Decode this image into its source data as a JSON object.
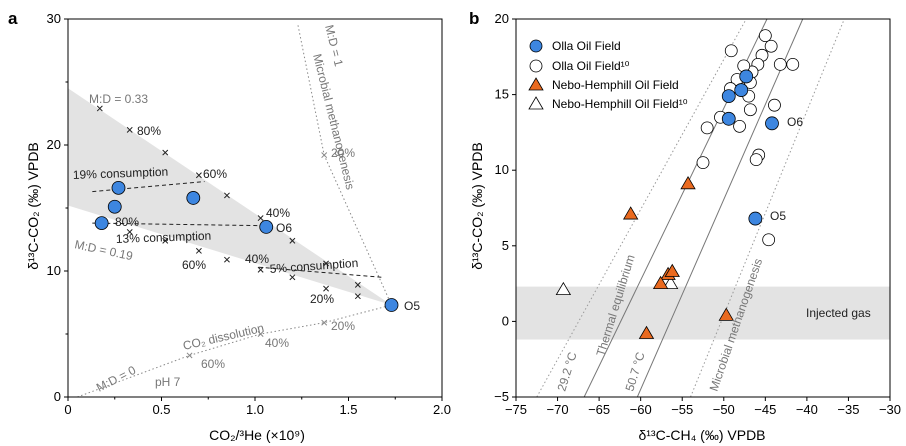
{
  "colors": {
    "olla_fill": "#3d86e0",
    "nebo_fill": "#ea6a1f",
    "band_fill": "#e3e3e3",
    "ann_gray": "#777777",
    "dark": "#222222"
  },
  "chart_data": [
    {
      "panel_label": "a",
      "type": "scatter",
      "xlabel": "CO₂/³He (×10⁹)",
      "ylabel": "δ¹³C-CO₂ (‰) VPDB",
      "xlim": [
        0,
        2.0
      ],
      "ylim": [
        0,
        30
      ],
      "xticks": [
        "0",
        "0.5",
        "1.0",
        "1.5",
        "2.0"
      ],
      "yticks": [
        "0",
        "10",
        "20",
        "30"
      ],
      "shaded_region": [
        [
          0.0,
          24.5
        ],
        [
          1.73,
          7.3
        ],
        [
          0.0,
          15.2
        ]
      ],
      "mixing_lines": [
        {
          "label": "M:D = 0.33",
          "points": [
            [
              0.17,
              22.9
            ],
            [
              0.33,
              21.2
            ],
            [
              0.52,
              19.4
            ],
            [
              0.7,
              17.6
            ],
            [
              0.85,
              16.0
            ],
            [
              1.03,
              14.2
            ],
            [
              1.2,
              12.4
            ],
            [
              1.38,
              10.6
            ],
            [
              1.55,
              8.9
            ],
            [
              1.73,
              7.3
            ]
          ],
          "pct_labels": [
            "80%",
            "60%",
            "40%"
          ]
        },
        {
          "label": "M:D = 0.19",
          "points": [
            [
              0.17,
              14.0
            ],
            [
              0.33,
              13.1
            ],
            [
              0.52,
              12.4
            ],
            [
              0.7,
              11.6
            ],
            [
              0.85,
              10.9
            ],
            [
              1.03,
              10.1
            ],
            [
              1.2,
              9.5
            ],
            [
              1.38,
              8.6
            ],
            [
              1.55,
              8.0
            ],
            [
              1.73,
              7.3
            ]
          ],
          "pct_labels": [
            "80%",
            "60%",
            "40%",
            "20%"
          ]
        },
        {
          "label": "M:D = 1",
          "sublabel": "Microbial methanogenesis",
          "points": [
            [
              1.23,
              29.5
            ],
            [
              1.37,
              19.2
            ],
            [
              1.73,
              7.3
            ]
          ],
          "pct_labels": [
            "20%"
          ]
        },
        {
          "label": "M:D = 0",
          "sublabel": "CO₂ dissolution",
          "extra": "pH 7",
          "points": [
            [
              0.05,
              0.0
            ],
            [
              0.65,
              3.3
            ],
            [
              1.03,
              5.0
            ],
            [
              1.37,
              5.9
            ],
            [
              1.73,
              7.3
            ]
          ],
          "pct_labels": [
            "60%",
            "40%",
            "20%"
          ]
        }
      ],
      "consumption_lines": [
        {
          "label": "19% consumption",
          "from": [
            0.13,
            16.3
          ],
          "to": [
            0.73,
            17.1
          ]
        },
        {
          "label": "13% consumption",
          "from": [
            0.13,
            13.8
          ],
          "to": [
            1.03,
            13.6
          ]
        },
        {
          "label": "5% consumption",
          "from": [
            1.02,
            10.3
          ],
          "to": [
            1.68,
            9.5
          ]
        }
      ],
      "series": [
        {
          "name": "Olla Oil Field",
          "marker": "filled-circle",
          "points": [
            [
              0.18,
              13.8
            ],
            [
              0.25,
              15.1
            ],
            [
              0.27,
              16.6
            ],
            [
              0.67,
              15.8
            ],
            [
              1.06,
              13.5
            ],
            [
              1.73,
              7.3
            ]
          ]
        }
      ],
      "point_labels": [
        {
          "text": "O6",
          "at": [
            1.06,
            13.5
          ]
        },
        {
          "text": "O5",
          "at": [
            1.73,
            7.3
          ]
        }
      ]
    },
    {
      "panel_label": "b",
      "type": "scatter",
      "xlabel": "δ¹³C-CH₄ (‰) VPDB",
      "ylabel": "δ¹³C-CO₂ (‰) VPDB",
      "xlim": [
        -75,
        -30
      ],
      "ylim": [
        -5,
        20
      ],
      "xticks": [
        "−75",
        "−70",
        "−65",
        "−60",
        "−55",
        "−50",
        "−45",
        "−40",
        "−35",
        "−30"
      ],
      "yticks": [
        "−5",
        "0",
        "5",
        "10",
        "15",
        "20"
      ],
      "injected_gas": {
        "label": "Injected gas",
        "y_range": [
          -1.2,
          2.3
        ]
      },
      "reference_lines": [
        {
          "label": "29.2 °C",
          "style": "dotted",
          "from": [
            -72.5,
            -5.0
          ],
          "to": [
            -47.3,
            20.0
          ]
        },
        {
          "label": "Thermal equilibrium",
          "style": "solid",
          "from": [
            -66.8,
            -5.0
          ],
          "to": [
            -44.8,
            20.0
          ]
        },
        {
          "label": "50.7 °C",
          "style": "solid",
          "from": [
            -60.4,
            -5.0
          ],
          "to": [
            -40.5,
            20.0
          ]
        },
        {
          "label": "Microbial methanogenesis",
          "style": "dotted",
          "from": [
            -54.0,
            -5.0
          ],
          "to": [
            -35.5,
            20.0
          ]
        }
      ],
      "series": [
        {
          "name": "Olla Oil Field",
          "marker": "filled-circle",
          "points": [
            [
              -49.4,
              14.9
            ],
            [
              -47.9,
              15.3
            ],
            [
              -47.3,
              16.2
            ],
            [
              -49.4,
              13.4
            ],
            [
              -44.2,
              13.1
            ],
            [
              -46.2,
              6.8
            ]
          ]
        },
        {
          "name": "Olla Oil Field¹⁰",
          "marker": "open-circle",
          "points": [
            [
              -49.1,
              17.9
            ],
            [
              -44.3,
              18.2
            ],
            [
              -45.0,
              18.9
            ],
            [
              -45.4,
              17.6
            ],
            [
              -45.9,
              17.0
            ],
            [
              -46.6,
              16.5
            ],
            [
              -47.6,
              16.9
            ],
            [
              -48.4,
              16.0
            ],
            [
              -49.2,
              15.4
            ],
            [
              -41.7,
              17.0
            ],
            [
              -43.2,
              17.0
            ],
            [
              -46.8,
              15.8
            ],
            [
              -47.0,
              14.9
            ],
            [
              -46.8,
              14.0
            ],
            [
              -48.1,
              12.9
            ],
            [
              -50.4,
              13.5
            ],
            [
              -52.0,
              12.8
            ],
            [
              -52.5,
              10.5
            ],
            [
              -45.8,
              11.0
            ],
            [
              -46.1,
              10.7
            ],
            [
              -43.9,
              14.3
            ],
            [
              -44.6,
              5.4
            ]
          ]
        },
        {
          "name": "Nebo-Hemphill Oil Field",
          "marker": "filled-triangle",
          "points": [
            [
              -61.2,
              7.1
            ],
            [
              -54.3,
              9.1
            ],
            [
              -56.7,
              3.1
            ],
            [
              -56.2,
              3.3
            ],
            [
              -57.6,
              2.5
            ],
            [
              -59.3,
              -0.8
            ],
            [
              -49.7,
              0.4
            ]
          ]
        },
        {
          "name": "Nebo-Hemphill Oil Field¹⁰",
          "marker": "open-triangle",
          "points": [
            [
              -69.3,
              2.1
            ],
            [
              -56.4,
              2.5
            ]
          ]
        }
      ],
      "point_labels": [
        {
          "text": "O6",
          "at": [
            -44.2,
            13.1
          ]
        },
        {
          "text": "O5",
          "at": [
            -46.2,
            6.8
          ]
        }
      ]
    }
  ]
}
